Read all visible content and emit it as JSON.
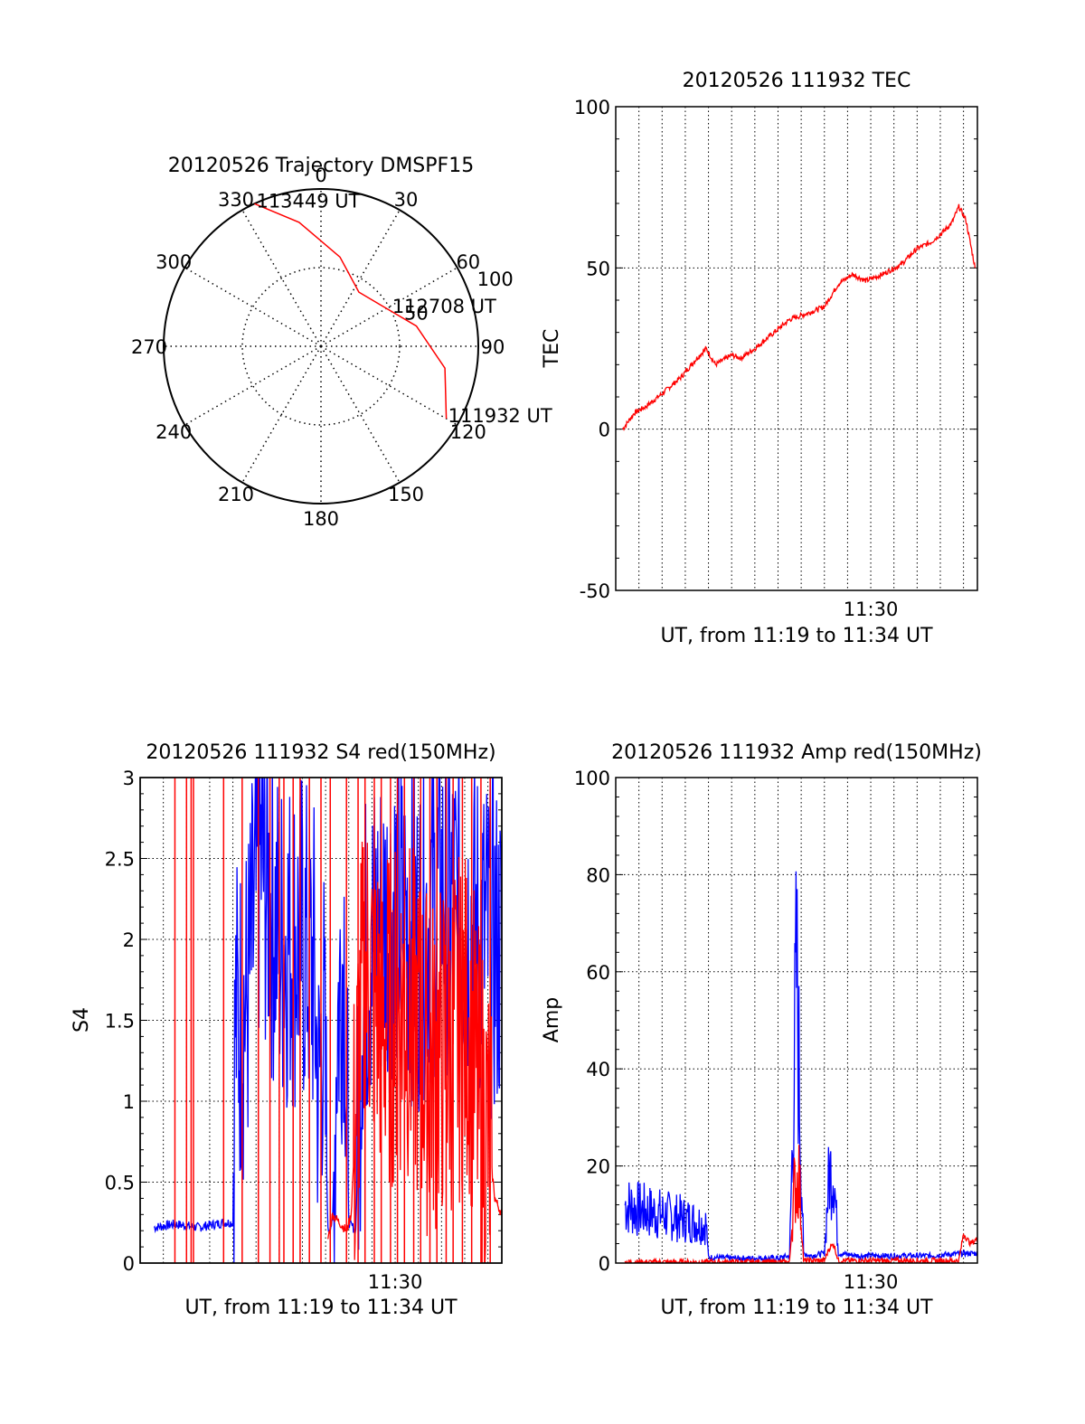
{
  "chart_data": [
    {
      "type": "polar",
      "title": "20120526 Trajectory DMSPF15",
      "angle_ticks": [
        "0",
        "30",
        "60",
        "90",
        "120",
        "150",
        "180",
        "210",
        "240",
        "270",
        "300",
        "330"
      ],
      "radius_ticks": [
        "50",
        "100"
      ],
      "rlim": [
        0,
        100
      ],
      "grid": true,
      "series": [
        {
          "color": "#ff0000",
          "points": [
            {
              "az": 120,
              "el": 92
            },
            {
              "az": 100,
              "el": 80
            },
            {
              "az": 78,
              "el": 62
            },
            {
              "az": 55,
              "el": 46
            },
            {
              "az": 35,
              "el": 42
            },
            {
              "az": 12,
              "el": 58
            },
            {
              "az": -10,
              "el": 80
            },
            {
              "az": -25,
              "el": 100
            }
          ]
        }
      ],
      "annotations": [
        {
          "text": "113449 UT",
          "az": -25,
          "el": 100
        },
        {
          "text": "112708 UT",
          "az": 62,
          "el": 50
        },
        {
          "text": "111932 UT",
          "az": 120,
          "el": 92
        }
      ]
    },
    {
      "type": "line",
      "title": "20120526 111932 TEC",
      "xlabel": "UT, from 11:19 to 11:34 UT",
      "ylabel": "TEC",
      "xlim": [
        0,
        15.6
      ],
      "ylim": [
        -50,
        100
      ],
      "yticks": [
        -50,
        0,
        50,
        100
      ],
      "xticks": [
        {
          "value": 11,
          "label": "11:30"
        }
      ],
      "grid": true,
      "series": [
        {
          "color": "#ff0000",
          "x": [
            0.3,
            0.8,
            1.3,
            2.0,
            2.8,
            3.5,
            3.9,
            4.3,
            5.0,
            5.4,
            6.0,
            7.0,
            7.5,
            8.3,
            9.0,
            9.6,
            10.2,
            10.8,
            11.5,
            12.3,
            13.0,
            13.6,
            14.1,
            14.5,
            14.8,
            15.1,
            15.5
          ],
          "y": [
            0,
            5,
            7,
            11,
            16,
            22,
            25,
            20,
            23,
            22,
            25,
            31,
            34,
            36,
            38,
            45,
            48,
            46,
            48,
            51,
            56,
            58,
            61,
            64,
            69,
            65,
            50
          ]
        }
      ]
    },
    {
      "type": "line",
      "title": "20120526 111932 S4 red(150MHz)",
      "xlabel": "UT, from 11:19 to 11:34 UT",
      "ylabel": "S4",
      "xlim": [
        0,
        15.6
      ],
      "ylim": [
        0,
        3
      ],
      "yticks": [
        0,
        0.5,
        1,
        1.5,
        2,
        2.5,
        3
      ],
      "yticklabels": [
        "0",
        "0.5",
        "1",
        "1.5",
        "2",
        "2.5",
        "3"
      ],
      "xticks": [
        {
          "value": 11,
          "label": "11:30"
        }
      ],
      "grid": true,
      "series": [
        {
          "color": "#0000ff",
          "x": [
            0.6,
            1.5,
            2.5,
            3.6,
            4.0,
            4.1,
            4.3,
            4.6,
            5.0,
            5.2,
            5.5,
            6.0,
            7.0,
            7.5,
            7.7,
            7.9,
            8.1,
            8.3,
            8.5,
            8.8,
            9.0,
            9.3,
            9.6,
            10.0,
            11.0,
            12.0,
            13.0,
            14.0,
            15.0,
            15.6
          ],
          "y": [
            0.22,
            0.24,
            0.22,
            0.25,
            0.25,
            1.5,
            1.5,
            1.6,
            2.2,
            2.5,
            2.3,
            2.0,
            2.0,
            1.8,
            1.0,
            1.6,
            0.2,
            0.25,
            1.5,
            2.0,
            0.25,
            0.2,
            1.8,
            2.0,
            2.2,
            2.0,
            2.3,
            2.1,
            2.0,
            1.9
          ]
        },
        {
          "color": "#ff0000",
          "x": [
            8.1,
            8.3,
            8.9,
            9.1,
            9.5,
            9.8,
            10.5,
            11.5,
            12.5,
            13.5,
            14.2,
            14.6,
            15.0,
            15.3,
            15.6
          ],
          "y": [
            0.15,
            0.3,
            0.2,
            0.3,
            1.5,
            1.8,
            1.5,
            1.6,
            1.2,
            1.4,
            1.5,
            1.0,
            0.8,
            0.4,
            0.3
          ]
        }
      ]
    },
    {
      "type": "line",
      "title": "20120526 111932 Amp red(150MHz)",
      "xlabel": "UT, from 11:19 to 11:34 UT",
      "ylabel": "Amp",
      "xlim": [
        0,
        15.6
      ],
      "ylim": [
        0,
        100
      ],
      "yticks": [
        0,
        20,
        40,
        60,
        80,
        100
      ],
      "xticks": [
        {
          "value": 11,
          "label": "11:30"
        }
      ],
      "grid": true,
      "series": [
        {
          "color": "#0000ff",
          "x": [
            0.4,
            1.0,
            2.0,
            3.0,
            3.9,
            4.0,
            5.0,
            6.0,
            7.0,
            7.5,
            7.7,
            7.8,
            7.9,
            8.1,
            8.4,
            9.0,
            9.2,
            9.4,
            9.6,
            10.5,
            12.0,
            13.5,
            15.0,
            15.6
          ],
          "y": [
            12,
            11,
            10,
            9,
            8,
            1.2,
            1,
            1,
            1,
            1.5,
            40,
            60,
            40,
            2,
            1.5,
            2,
            18,
            20,
            2,
            1.5,
            1.5,
            1.5,
            2,
            2
          ]
        },
        {
          "color": "#ff0000",
          "x": [
            0.4,
            7.5,
            7.7,
            7.9,
            8.1,
            9.0,
            9.2,
            9.4,
            9.6,
            14.8,
            15.0,
            15.3,
            15.6
          ],
          "y": [
            0.2,
            0.2,
            15,
            18,
            0.5,
            0.5,
            3,
            4,
            0.5,
            0.5,
            6,
            4,
            5
          ]
        }
      ]
    }
  ]
}
